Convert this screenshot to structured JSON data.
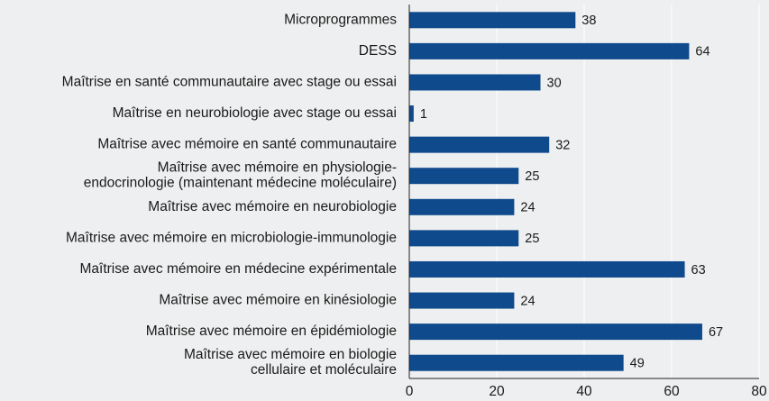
{
  "chart_data": {
    "type": "barh",
    "categories": [
      "Microprogrammes",
      "DESS",
      "Maîtrise en santé communautaire avec stage ou essai",
      "Maîtrise en neurobiologie avec stage ou essai",
      "Maîtrise avec mémoire en santé communautaire",
      "Maîtrise avec mémoire en physiologie-\nendocrinologie (maintenant médecine moléculaire)",
      "Maîtrise avec mémoire en neurobiologie",
      "Maîtrise avec mémoire en microbiologie-immunologie",
      "Maîtrise avec mémoire en médecine expérimentale",
      "Maîtrise avec mémoire en kinésiologie",
      "Maîtrise avec mémoire en épidémiologie",
      "Maîtrise avec mémoire en biologie\ncellulaire et moléculaire"
    ],
    "values": [
      38,
      64,
      30,
      1,
      32,
      25,
      24,
      25,
      63,
      24,
      67,
      49
    ],
    "color": "#0f4a8c",
    "xlim": [
      0,
      80
    ],
    "xticks": [
      0,
      20,
      40,
      60,
      80
    ],
    "grid": true
  }
}
